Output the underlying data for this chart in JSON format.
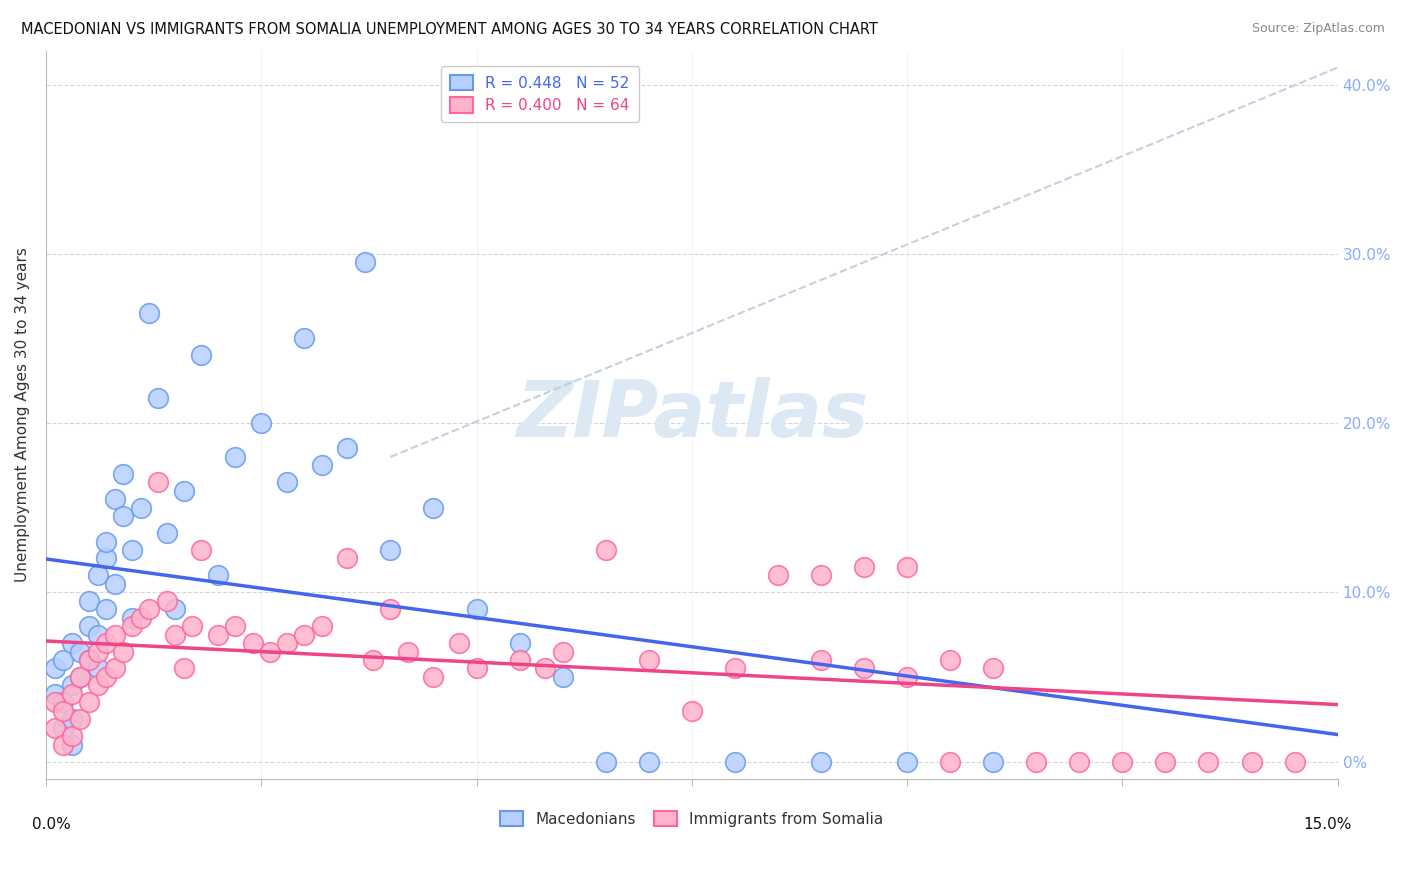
{
  "title": "MACEDONIAN VS IMMIGRANTS FROM SOMALIA UNEMPLOYMENT AMONG AGES 30 TO 34 YEARS CORRELATION CHART",
  "source": "Source: ZipAtlas.com",
  "ylabel": "Unemployment Among Ages 30 to 34 years",
  "right_ytick_labels": [
    "0%",
    "10.0%",
    "20.0%",
    "30.0%",
    "40.0%"
  ],
  "right_ytick_vals": [
    0.0,
    0.1,
    0.2,
    0.3,
    0.4
  ],
  "xlim": [
    0.0,
    0.15
  ],
  "ylim": [
    -0.01,
    0.42
  ],
  "legend1_r": "0.448",
  "legend1_n": "52",
  "legend2_r": "0.400",
  "legend2_n": "64",
  "mac_color_face": "#b8d0ff",
  "mac_color_edge": "#6699ee",
  "som_color_face": "#ffb3cc",
  "som_color_edge": "#ff6699",
  "trend1_color": "#4466ee",
  "trend2_color": "#ee4488",
  "dash_color": "#bbccdd",
  "watermark": "ZIPatlas",
  "watermark_color": "#dde8f5",
  "right_tick_color": "#88aaff",
  "mac_x": [
    0.001,
    0.001,
    0.002,
    0.002,
    0.002,
    0.003,
    0.003,
    0.003,
    0.003,
    0.004,
    0.004,
    0.005,
    0.005,
    0.005,
    0.006,
    0.006,
    0.006,
    0.007,
    0.007,
    0.007,
    0.008,
    0.008,
    0.009,
    0.009,
    0.01,
    0.01,
    0.011,
    0.012,
    0.013,
    0.014,
    0.015,
    0.016,
    0.018,
    0.02,
    0.022,
    0.025,
    0.028,
    0.03,
    0.032,
    0.035,
    0.037,
    0.04,
    0.045,
    0.05,
    0.055,
    0.06,
    0.065,
    0.07,
    0.08,
    0.09,
    0.1,
    0.11
  ],
  "mac_y": [
    0.04,
    0.055,
    0.02,
    0.035,
    0.06,
    0.01,
    0.025,
    0.045,
    0.07,
    0.05,
    0.065,
    0.06,
    0.08,
    0.095,
    0.055,
    0.075,
    0.11,
    0.09,
    0.12,
    0.13,
    0.105,
    0.155,
    0.17,
    0.145,
    0.085,
    0.125,
    0.15,
    0.265,
    0.215,
    0.135,
    0.09,
    0.16,
    0.24,
    0.11,
    0.18,
    0.2,
    0.165,
    0.25,
    0.175,
    0.185,
    0.295,
    0.125,
    0.15,
    0.09,
    0.07,
    0.05,
    0.0,
    0.0,
    0.0,
    0.0,
    0.0,
    0.0
  ],
  "som_x": [
    0.001,
    0.001,
    0.002,
    0.002,
    0.003,
    0.003,
    0.004,
    0.004,
    0.005,
    0.005,
    0.006,
    0.006,
    0.007,
    0.007,
    0.008,
    0.008,
    0.009,
    0.01,
    0.011,
    0.012,
    0.013,
    0.014,
    0.015,
    0.016,
    0.017,
    0.018,
    0.02,
    0.022,
    0.024,
    0.026,
    0.028,
    0.03,
    0.032,
    0.035,
    0.038,
    0.04,
    0.042,
    0.045,
    0.048,
    0.05,
    0.055,
    0.058,
    0.06,
    0.065,
    0.07,
    0.075,
    0.08,
    0.085,
    0.09,
    0.095,
    0.1,
    0.105,
    0.11,
    0.115,
    0.12,
    0.125,
    0.13,
    0.135,
    0.14,
    0.145,
    0.09,
    0.095,
    0.1,
    0.105
  ],
  "som_y": [
    0.02,
    0.035,
    0.01,
    0.03,
    0.015,
    0.04,
    0.025,
    0.05,
    0.035,
    0.06,
    0.045,
    0.065,
    0.05,
    0.07,
    0.055,
    0.075,
    0.065,
    0.08,
    0.085,
    0.09,
    0.165,
    0.095,
    0.075,
    0.055,
    0.08,
    0.125,
    0.075,
    0.08,
    0.07,
    0.065,
    0.07,
    0.075,
    0.08,
    0.12,
    0.06,
    0.09,
    0.065,
    0.05,
    0.07,
    0.055,
    0.06,
    0.055,
    0.065,
    0.125,
    0.06,
    0.03,
    0.055,
    0.11,
    0.11,
    0.115,
    0.115,
    0.06,
    0.055,
    0.0,
    0.0,
    0.0,
    0.0,
    0.0,
    0.0,
    0.0,
    0.06,
    0.055,
    0.05,
    0.0
  ]
}
